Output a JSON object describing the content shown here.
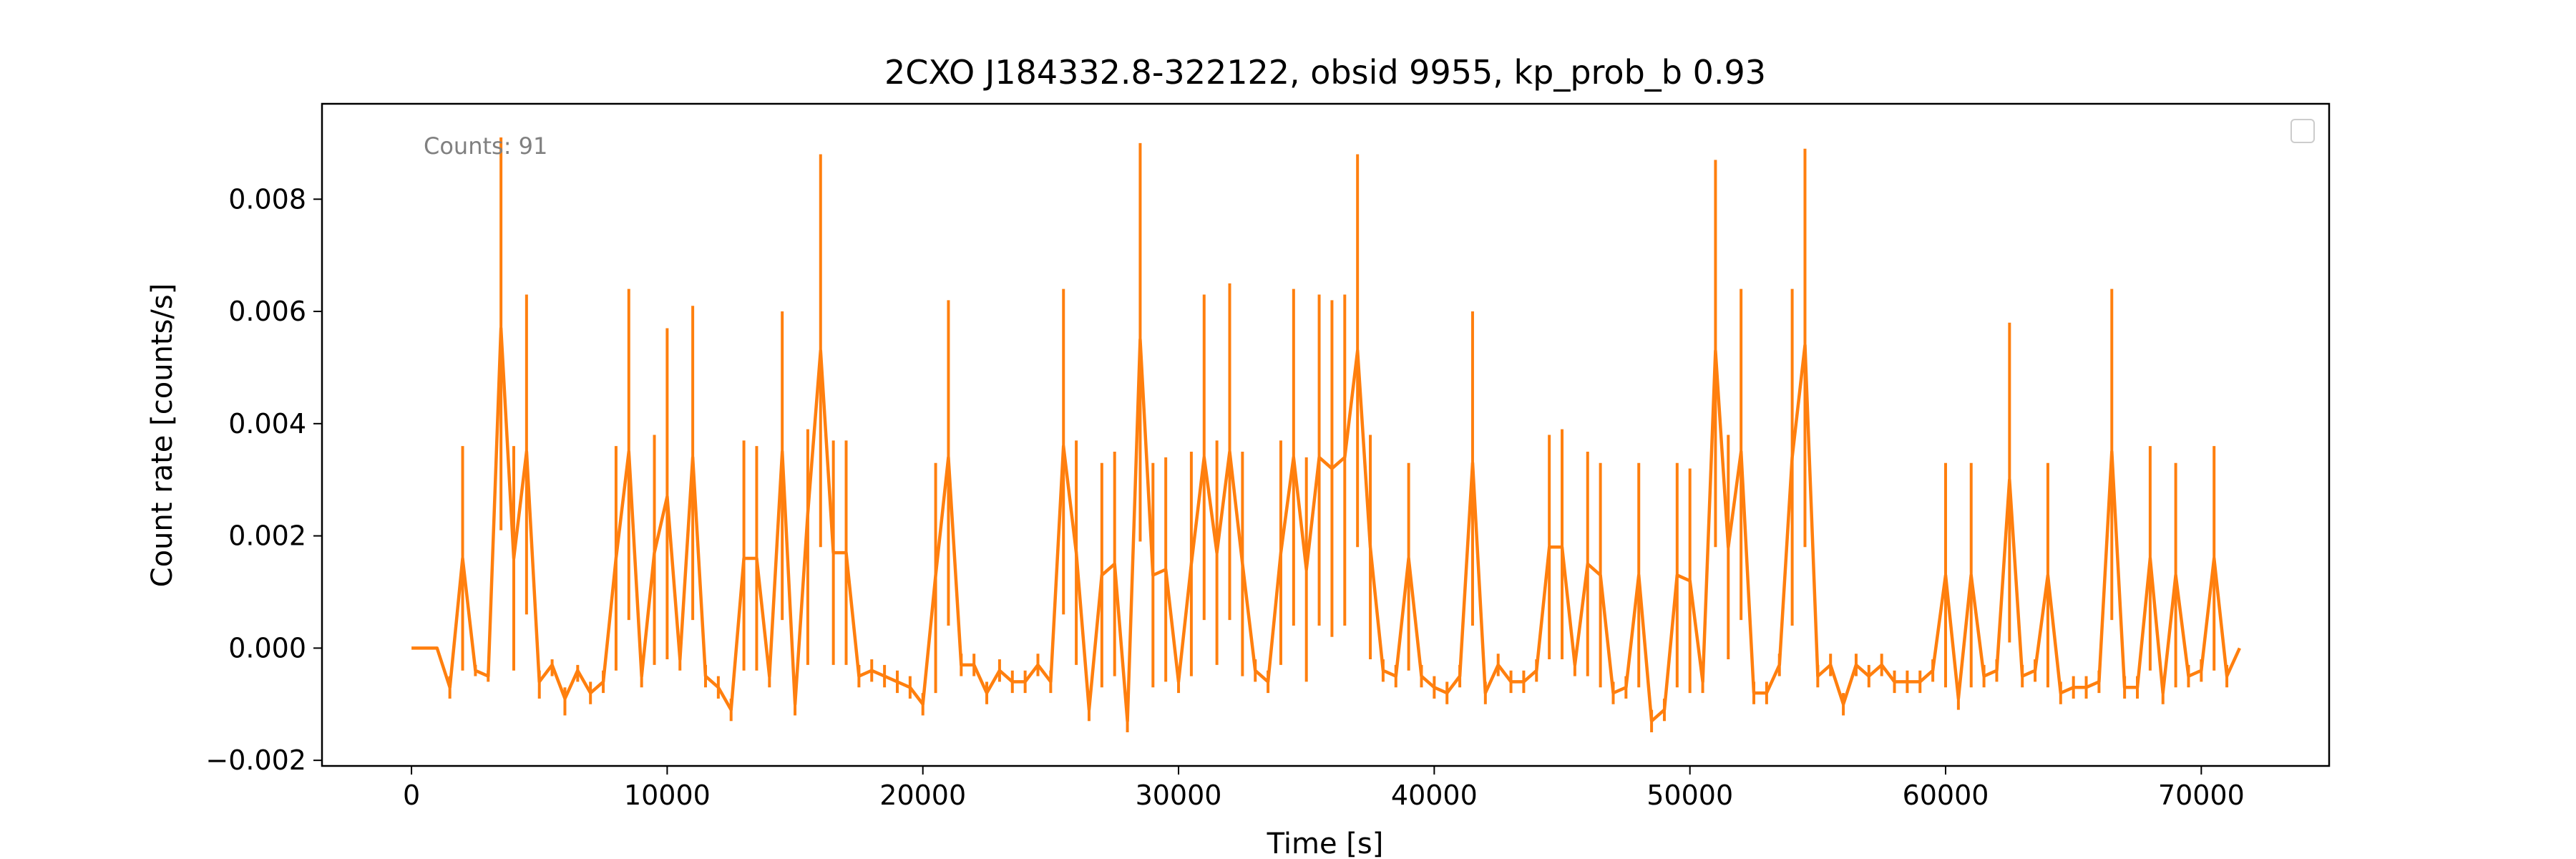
{
  "chart_data": {
    "type": "line",
    "title": "2CXO J184332.8-322122, obsid 9955, kp_prob_b 0.93",
    "xlabel": "Time [s]",
    "ylabel": "Count rate [counts/s]",
    "annotation": "Counts: 91",
    "xlim": [
      -3500,
      75000
    ],
    "ylim": [
      -0.0021,
      0.0097
    ],
    "x_ticks": [
      0,
      10000,
      20000,
      30000,
      40000,
      50000,
      60000,
      70000
    ],
    "x_tick_labels": [
      "0",
      "10000",
      "20000",
      "30000",
      "40000",
      "50000",
      "60000",
      "70000"
    ],
    "y_ticks": [
      -0.002,
      0.0,
      0.002,
      0.004,
      0.006,
      0.008
    ],
    "y_tick_labels": [
      "−0.002",
      "0.000",
      "0.002",
      "0.004",
      "0.006",
      "0.008"
    ],
    "grid": false,
    "legend": "top-right (empty)",
    "color": "#ff7f0e",
    "series": [
      {
        "x": [
          0,
          500,
          1000,
          1500,
          2000,
          2500,
          3000,
          3500,
          4000,
          4500,
          5000,
          5500,
          6000,
          6500,
          7000,
          7500,
          8000,
          8500,
          9000,
          9500,
          10000,
          10500,
          11000,
          11500,
          12000,
          12500,
          13000,
          13500,
          14000,
          14500,
          15000,
          15500,
          16000,
          16500,
          17000,
          17500,
          18000,
          18500,
          19000,
          19500,
          20000,
          20500,
          21000,
          21500,
          22000,
          22500,
          23000,
          23500,
          24000,
          24500,
          25000,
          25500,
          26000,
          26500,
          27000,
          27500,
          28000,
          28500,
          29000,
          29500,
          30000,
          30500,
          31000,
          31500,
          32000,
          32500,
          33000,
          33500,
          34000,
          34500,
          35000,
          35500,
          36000,
          36500,
          37000,
          37500,
          38000,
          38500,
          39000,
          39500,
          40000,
          40500,
          41000,
          41500,
          42000,
          42500,
          43000,
          43500,
          44000,
          44500,
          45000,
          45500,
          46000,
          46500,
          47000,
          47500,
          48000,
          48500,
          49000,
          49500,
          50000,
          50500,
          51000,
          51500,
          52000,
          52500,
          53000,
          53500,
          54000,
          54500,
          55000,
          55500,
          56000,
          56500,
          57000,
          57500,
          58000,
          58500,
          59000,
          59500,
          60000,
          60500,
          61000,
          61500,
          62000,
          62500,
          63000,
          63500,
          64000,
          64500,
          65000,
          65500,
          66000,
          66500,
          67000,
          67500,
          68000,
          68500,
          69000,
          69500,
          70000,
          70500,
          71000,
          71500
        ],
        "y": [
          0,
          0,
          0,
          -0.0007,
          0.0016,
          -0.0004,
          -0.0005,
          0.0057,
          0.0016,
          0.0035,
          -0.0006,
          -0.0003,
          -0.0009,
          -0.0004,
          -0.0008,
          -0.0006,
          0.0016,
          0.0035,
          -0.0005,
          0.0017,
          0.0027,
          -0.0002,
          0.0034,
          -0.0005,
          -0.0007,
          -0.0011,
          0.0016,
          0.0016,
          -0.0005,
          0.0035,
          -0.001,
          0.0024,
          0.0053,
          0.0017,
          0.0017,
          -0.0005,
          -0.0004,
          -0.0005,
          -0.0006,
          -0.0007,
          -0.001,
          0.0013,
          0.0034,
          -0.0003,
          -0.0003,
          -0.0008,
          -0.0004,
          -0.0006,
          -0.0006,
          -0.0003,
          -0.0006,
          0.0036,
          0.0017,
          -0.0011,
          0.0013,
          0.0015,
          -0.0013,
          0.0055,
          0.0013,
          0.0014,
          -0.0006,
          0.0015,
          0.0034,
          0.0017,
          0.0035,
          0.0015,
          -0.0004,
          -0.0006,
          0.0017,
          0.0034,
          0.0014,
          0.0034,
          0.0032,
          0.0034,
          0.0053,
          0.0018,
          -0.0004,
          -0.0005,
          0.0016,
          -0.0005,
          -0.0007,
          -0.0008,
          -0.0005,
          0.0033,
          -0.0008,
          -0.0003,
          -0.0006,
          -0.0006,
          -0.0004,
          0.0018,
          0.0018,
          -0.0003,
          0.0015,
          0.0013,
          -0.0008,
          -0.0007,
          0.0013,
          -0.0013,
          -0.0011,
          0.0013,
          0.0012,
          -0.0006,
          0.0053,
          0.0018,
          0.0035,
          -0.0008,
          -0.0008,
          -0.0003,
          0.0034,
          0.0054,
          -0.0005,
          -0.0003,
          -0.001,
          -0.0003,
          -0.0005,
          -0.0003,
          -0.0006,
          -0.0006,
          -0.0006,
          -0.0004,
          0.0013,
          -0.0009,
          0.0013,
          -0.0005,
          -0.0004,
          0.003,
          -0.0005,
          -0.0004,
          0.0013,
          -0.0008,
          -0.0007,
          -0.0007,
          -0.0006,
          0.0035,
          -0.0007,
          -0.0007,
          0.0016,
          -0.0008,
          0.0013,
          -0.0005,
          -0.0004,
          0.0016,
          -0.0005,
          0.0
        ],
        "err_low": [
          0,
          0,
          0,
          -0.0009,
          -0.0004,
          -0.0005,
          -0.0006,
          0.0021,
          -0.0004,
          0.0006,
          -0.0009,
          -0.0005,
          -0.0012,
          -0.0006,
          -0.001,
          -0.0008,
          -0.0004,
          0.0005,
          -0.0007,
          -0.0003,
          -0.0002,
          -0.0004,
          0.0005,
          -0.0007,
          -0.0009,
          -0.0013,
          -0.0004,
          -0.0004,
          -0.0007,
          0.0005,
          -0.0012,
          -0.0003,
          0.0018,
          -0.0003,
          -0.0003,
          -0.0007,
          -0.0006,
          -0.0007,
          -0.0008,
          -0.0009,
          -0.0012,
          -0.0008,
          0.0004,
          -0.0005,
          -0.0005,
          -0.001,
          -0.0006,
          -0.0008,
          -0.0008,
          -0.0005,
          -0.0008,
          0.0006,
          -0.0003,
          -0.0013,
          -0.0007,
          -0.0005,
          -0.0015,
          0.0019,
          -0.0007,
          -0.0006,
          -0.0008,
          -0.0005,
          0.0005,
          -0.0003,
          0.0005,
          -0.0005,
          -0.0006,
          -0.0008,
          -0.0003,
          0.0004,
          -0.0006,
          0.0004,
          0.0002,
          0.0004,
          0.0018,
          -0.0002,
          -0.0006,
          -0.0007,
          -0.0004,
          -0.0007,
          -0.0009,
          -0.001,
          -0.0007,
          0.0004,
          -0.001,
          -0.0005,
          -0.0008,
          -0.0008,
          -0.0006,
          -0.0002,
          -0.0002,
          -0.0005,
          -0.0005,
          -0.0007,
          -0.001,
          -0.0009,
          -0.0007,
          -0.0015,
          -0.0013,
          -0.0007,
          -0.0008,
          -0.0008,
          0.0018,
          -0.0002,
          0.0005,
          -0.001,
          -0.001,
          -0.0005,
          0.0004,
          0.0018,
          -0.0007,
          -0.0005,
          -0.0012,
          -0.0005,
          -0.0007,
          -0.0005,
          -0.0008,
          -0.0008,
          -0.0008,
          -0.0006,
          -0.0007,
          -0.0011,
          -0.0007,
          -0.0007,
          -0.0006,
          0.0001,
          -0.0007,
          -0.0006,
          -0.0007,
          -0.001,
          -0.0009,
          -0.0009,
          -0.0008,
          0.0005,
          -0.0009,
          -0.0009,
          -0.0004,
          -0.001,
          -0.0007,
          -0.0007,
          -0.0006,
          -0.0004,
          -0.0007,
          0.0
        ],
        "err_high": [
          0,
          0,
          0,
          -0.0005,
          0.0036,
          -0.0003,
          -0.0004,
          0.0091,
          0.0036,
          0.0063,
          -0.0004,
          -0.0002,
          -0.0007,
          -0.0003,
          -0.0006,
          -0.0004,
          0.0036,
          0.0064,
          -0.0003,
          0.0038,
          0.0057,
          0.0,
          0.0061,
          -0.0003,
          -0.0005,
          -0.0009,
          0.0037,
          0.0036,
          -0.0003,
          0.006,
          -0.0008,
          0.0039,
          0.0088,
          0.0037,
          0.0037,
          -0.0003,
          -0.0002,
          -0.0003,
          -0.0004,
          -0.0005,
          -0.0008,
          0.0033,
          0.0062,
          -0.0001,
          -0.0001,
          -0.0006,
          -0.0002,
          -0.0004,
          -0.0004,
          -0.0001,
          -0.0004,
          0.0064,
          0.0037,
          -0.0009,
          0.0033,
          0.0035,
          -0.0011,
          0.009,
          0.0033,
          0.0034,
          -0.0004,
          0.0035,
          0.0063,
          0.0037,
          0.0065,
          0.0035,
          -0.0002,
          -0.0004,
          0.0037,
          0.0064,
          0.0034,
          0.0063,
          0.0062,
          0.0063,
          0.0088,
          0.0038,
          -0.0002,
          -0.0003,
          0.0033,
          -0.0003,
          -0.0005,
          -0.0006,
          -0.0003,
          0.006,
          -0.0006,
          -0.0001,
          -0.0004,
          -0.0004,
          -0.0002,
          0.0038,
          0.0039,
          -0.0001,
          0.0035,
          0.0033,
          -0.0006,
          -0.0005,
          0.0033,
          -0.0011,
          -0.0009,
          0.0033,
          0.0032,
          -0.0004,
          0.0087,
          0.0038,
          0.0064,
          -0.0006,
          -0.0006,
          -0.0001,
          0.0064,
          0.0089,
          -0.0003,
          -0.0001,
          -0.0008,
          -0.0001,
          -0.0003,
          -0.0001,
          -0.0004,
          -0.0004,
          -0.0004,
          -0.0002,
          0.0033,
          -0.0007,
          0.0033,
          -0.0003,
          -0.0002,
          0.0058,
          -0.0003,
          -0.0002,
          0.0033,
          -0.0006,
          -0.0005,
          -0.0005,
          -0.0004,
          0.0064,
          -0.0005,
          -0.0005,
          0.0036,
          -0.0006,
          0.0033,
          -0.0003,
          -0.0002,
          0.0036,
          -0.0003,
          0.0
        ]
      }
    ]
  }
}
